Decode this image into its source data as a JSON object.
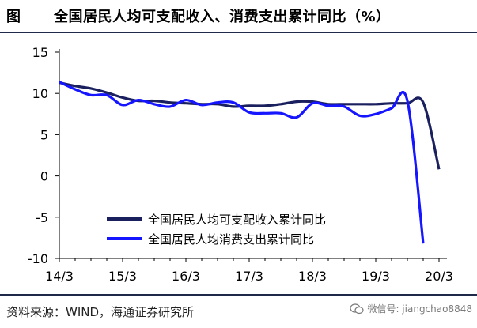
{
  "header": {
    "label": "图",
    "title": "全国居民人均可支配收入、消费支出累计同比（%）"
  },
  "source": "资料来源：WIND，海通证券研究所",
  "watermark": {
    "text": "微信号: jiangchao8848",
    "icon": "wechat-icon"
  },
  "colors": {
    "income": "#1a1f5e",
    "consumption": "#1515ff",
    "axis": "#000000",
    "rule": "#1f2a4a"
  },
  "chart_data": {
    "type": "line",
    "title": "全国居民人均可支配收入、消费支出累计同比（%）",
    "xlabel": "",
    "ylabel": "",
    "ylim": [
      -10,
      15
    ],
    "yticks": [
      15,
      10,
      5,
      0,
      -5,
      -10
    ],
    "x_tick_labels": [
      "14/3",
      "15/3",
      "16/3",
      "17/3",
      "18/3",
      "19/3",
      "20/3"
    ],
    "grid": false,
    "legend_position": "lower-left",
    "x_type": "quarter",
    "series": [
      {
        "name": "全国居民人均可支配收入累计同比",
        "points": [
          [
            "2014Q1",
            11.3
          ],
          [
            "2014Q2",
            10.9
          ],
          [
            "2014Q3",
            10.6
          ],
          [
            "2014Q4",
            10.1
          ],
          [
            "2015Q1",
            9.5
          ],
          [
            "2015Q2",
            9.1
          ],
          [
            "2015Q3",
            9.1
          ],
          [
            "2015Q4",
            8.9
          ],
          [
            "2016Q1",
            8.8
          ],
          [
            "2016Q2",
            8.7
          ],
          [
            "2016Q3",
            8.7
          ],
          [
            "2016Q4",
            8.4
          ],
          [
            "2017Q1",
            8.5
          ],
          [
            "2017Q2",
            8.5
          ],
          [
            "2017Q3",
            8.7
          ],
          [
            "2017Q4",
            9.0
          ],
          [
            "2018Q1",
            9.0
          ],
          [
            "2018Q2",
            8.7
          ],
          [
            "2018Q3",
            8.7
          ],
          [
            "2018Q4",
            8.7
          ],
          [
            "2019Q1",
            8.7
          ],
          [
            "2019Q2",
            8.8
          ],
          [
            "2019Q3",
            8.8
          ],
          [
            "2019Q4",
            8.9
          ],
          [
            "2020Q1",
            0.8
          ]
        ]
      },
      {
        "name": "全国居民人均消费支出累计同比",
        "points": [
          [
            "2014Q1",
            11.4
          ],
          [
            "2014Q2",
            10.5
          ],
          [
            "2014Q3",
            9.8
          ],
          [
            "2014Q4",
            9.8
          ],
          [
            "2015Q1",
            8.6
          ],
          [
            "2015Q2",
            9.2
          ],
          [
            "2015Q3",
            8.7
          ],
          [
            "2015Q4",
            8.4
          ],
          [
            "2016Q1",
            9.2
          ],
          [
            "2016Q2",
            8.6
          ],
          [
            "2016Q3",
            8.9
          ],
          [
            "2016Q4",
            8.9
          ],
          [
            "2017Q1",
            7.7
          ],
          [
            "2017Q2",
            7.6
          ],
          [
            "2017Q3",
            7.6
          ],
          [
            "2017Q4",
            7.1
          ],
          [
            "2018Q1",
            8.8
          ],
          [
            "2018Q2",
            8.5
          ],
          [
            "2018Q3",
            8.4
          ],
          [
            "2018Q4",
            7.3
          ],
          [
            "2019Q1",
            7.5
          ],
          [
            "2019Q2",
            8.2
          ],
          [
            "2019Q3",
            9.1
          ],
          [
            "2019Q4",
            -8.2
          ]
        ]
      }
    ]
  }
}
